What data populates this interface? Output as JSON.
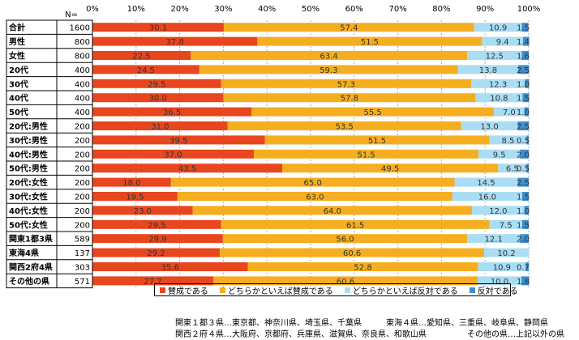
{
  "chart_data": {
    "type": "bar",
    "stacked": true,
    "orientation": "horizontal",
    "n_header": "N=",
    "x_ticks": [
      "0%",
      "10%",
      "20%",
      "30%",
      "40%",
      "50%",
      "60%",
      "70%",
      "80%",
      "90%",
      "100%"
    ],
    "xlim": [
      0,
      100
    ],
    "categories": [
      "合計",
      "男性",
      "女性",
      "20代",
      "30代",
      "40代",
      "50代",
      "20代:男性",
      "30代:男性",
      "40代:男性",
      "50代:男性",
      "20代:女性",
      "30代:女性",
      "40代:女性",
      "50代:女性",
      "関東1都3県",
      "東海4県",
      "関西2府4県",
      "その他の県"
    ],
    "n": [
      1600,
      800,
      800,
      400,
      400,
      400,
      400,
      200,
      200,
      200,
      200,
      200,
      200,
      200,
      200,
      589,
      137,
      303,
      571
    ],
    "series": [
      {
        "name": "賛成である",
        "color": "#E8461F",
        "values": [
          30.1,
          37.8,
          22.5,
          24.5,
          29.5,
          30.0,
          36.5,
          31.0,
          39.5,
          37.0,
          43.5,
          18.0,
          19.5,
          23.0,
          29.5,
          29.9,
          29.2,
          35.6,
          27.7
        ],
        "labels": [
          "30.1",
          "37.8",
          "22.5",
          "24.5",
          "29.5",
          "30.0",
          "36.5",
          "31.0",
          "39.5",
          "37.0",
          "43.5",
          "18.0",
          "19.5",
          "23.0",
          "29.5",
          "29.9",
          "29.2",
          "35.6",
          "27.7"
        ]
      },
      {
        "name": "どちらかといえば賛成である",
        "color": "#F5AE1F",
        "values": [
          57.4,
          51.5,
          63.4,
          59.3,
          57.3,
          57.8,
          55.5,
          53.5,
          51.5,
          51.5,
          49.5,
          65.0,
          63.0,
          64.0,
          61.5,
          56.0,
          60.6,
          52.8,
          60.6
        ],
        "labels": [
          "57.4",
          "51.5",
          "63.4",
          "59.3",
          "57.3",
          "57.8",
          "55.5",
          "53.5",
          "51.5",
          "51.5",
          "49.5",
          "65.0",
          "63.0",
          "64.0",
          "61.5",
          "56.0",
          "60.6",
          "52.8",
          "60.6"
        ]
      },
      {
        "name": "どちらかといえば反対である",
        "color": "#A9DDF3",
        "values": [
          10.9,
          9.4,
          12.5,
          13.8,
          12.3,
          10.8,
          7.0,
          13.0,
          8.5,
          9.5,
          6.5,
          14.5,
          16.0,
          12.0,
          7.5,
          12.1,
          10.2,
          10.9,
          10.0
        ],
        "labels": [
          "10.9",
          "9.4",
          "12.5",
          "13.8",
          "12.3",
          "10.8",
          "7.0",
          "13.0",
          "8.5",
          "9.5",
          "6.5",
          "14.5",
          "16.0",
          "12.0",
          "7.5",
          "12.1",
          "10.2",
          "10.9",
          "10.0"
        ]
      },
      {
        "name": "反対である",
        "color": "#3D8FD0",
        "values": [
          1.5,
          1.4,
          1.6,
          2.5,
          1.0,
          1.5,
          1.0,
          2.5,
          0.5,
          2.0,
          0.5,
          2.5,
          1.5,
          1.0,
          1.5,
          2.0,
          0.0,
          0.7,
          1.8
        ],
        "labels": [
          "1.5",
          "1.4",
          "1.6",
          "2.5",
          "1.0",
          "1.5",
          "1.0",
          "2.5",
          "0.5",
          "2.0",
          "0.5",
          "2.5",
          "1.5",
          "1.0",
          "1.5",
          "2.0",
          "",
          "0.7",
          "1.8"
        ]
      }
    ]
  },
  "footnotes": [
    "関東１都３県…東京都、神奈川県、埼玉県、千葉県　　　東海４県…愛知県、三重県、岐阜県、静岡県",
    "関西２府４県…大阪府、京都府、兵庫県、滋賀県、奈良県、和歌山県　　　　　その他の県…上記以外の県"
  ]
}
